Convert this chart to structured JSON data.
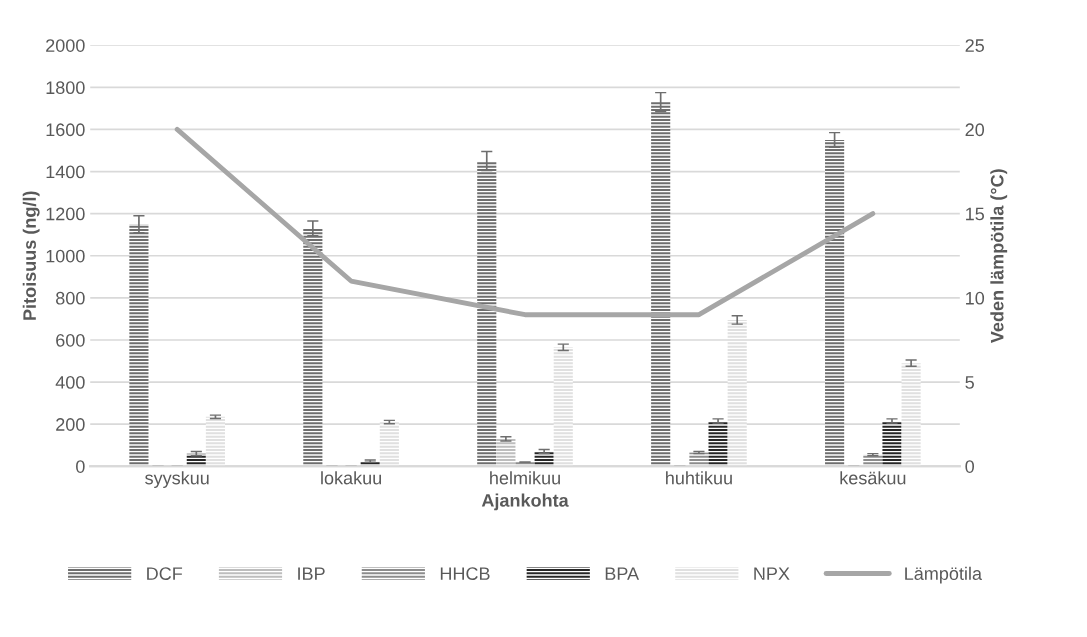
{
  "chart_data": {
    "type": "bar",
    "xlabel": "Ajankohta",
    "ylabel": "Pitoisuus (ng/l)",
    "y2label": "Veden lämpötila (°C)",
    "categories": [
      "syyskuu",
      "lokakuu",
      "helmikuu",
      "huhtikuu",
      "kesäkuu"
    ],
    "series": [
      {
        "name": "DCF",
        "color": "#6e6e6e",
        "values": [
          1150,
          1130,
          1450,
          1730,
          1550
        ],
        "errors": [
          40,
          35,
          45,
          45,
          35
        ]
      },
      {
        "name": "IBP",
        "color": "#bdbdbd",
        "values": [
          0,
          0,
          130,
          0,
          0
        ],
        "errors": [
          null,
          null,
          10,
          null,
          null
        ]
      },
      {
        "name": "HHCB",
        "color": "#8c8c8c",
        "values": [
          0,
          0,
          20,
          65,
          55
        ],
        "errors": [
          null,
          null,
          null,
          5,
          5
        ]
      },
      {
        "name": "BPA",
        "color": "#262626",
        "values": [
          60,
          25,
          70,
          215,
          215
        ],
        "errors": [
          10,
          5,
          10,
          10,
          10
        ]
      },
      {
        "name": "NPX",
        "color": "#e0e0e0",
        "values": [
          235,
          210,
          565,
          695,
          490
        ],
        "errors": [
          8,
          8,
          15,
          20,
          15
        ]
      },
      {
        "name": "Lämpötila",
        "type": "line",
        "axis": "y2",
        "color": "#a6a6a6",
        "values": [
          20,
          11,
          9,
          9,
          15
        ]
      }
    ],
    "ylim": [
      0,
      2000
    ],
    "yticks": [
      0,
      200,
      400,
      600,
      800,
      1000,
      1200,
      1400,
      1600,
      1800,
      2000
    ],
    "y2lim": [
      0,
      25
    ],
    "y2ticks": [
      0,
      5,
      10,
      15,
      20,
      25
    ],
    "grid": "y",
    "legend": "bottom"
  }
}
